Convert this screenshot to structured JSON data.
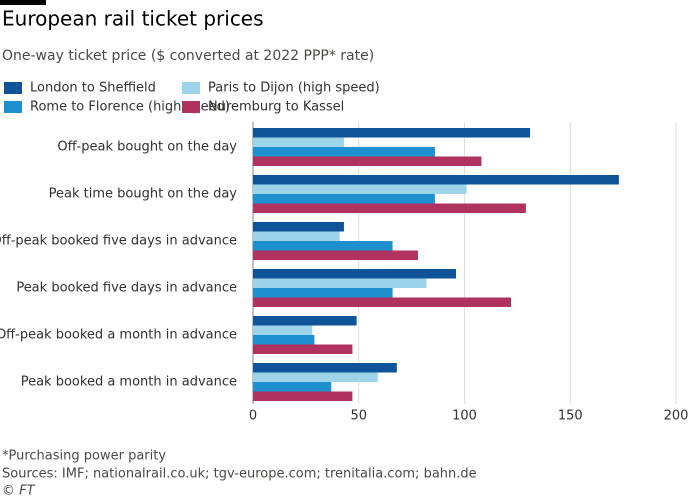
{
  "chart_data": {
    "type": "hbar",
    "title": "European rail ticket prices",
    "subtitle": "One-way ticket price ($ converted at 2022 PPP* rate)",
    "categories": [
      "Off-peak bought on the day",
      "Peak time bought on the day",
      "Off-peak booked five days in advance",
      "Peak booked five days in advance",
      "Off-peak booked a month in advance",
      "Peak booked a month in advance"
    ],
    "series": [
      {
        "name": "London to Sheffield",
        "color": "#0f5499",
        "values": [
          131,
          173,
          43,
          96,
          49,
          68
        ]
      },
      {
        "name": "Paris to Dijon (high speed)",
        "color": "#9dd4ea",
        "values": [
          43,
          101,
          41,
          82,
          28,
          59
        ]
      },
      {
        "name": "Rome to Florence (high speed)",
        "color": "#1e8fcf",
        "values": [
          86,
          86,
          66,
          66,
          29,
          37
        ]
      },
      {
        "name": "Nuremburg to Kassel",
        "color": "#b0325e",
        "values": [
          108,
          129,
          78,
          122,
          47,
          47
        ]
      }
    ],
    "xlim": [
      0,
      200
    ],
    "xticks": [
      0,
      50,
      100,
      150,
      200
    ],
    "grid": true,
    "footnote": "*Purchasing power parity",
    "source": "Sources: IMF; nationalrail.co.uk; tgv-europe.com; trenitalia.com; bahn.de",
    "credit": "© FT"
  }
}
